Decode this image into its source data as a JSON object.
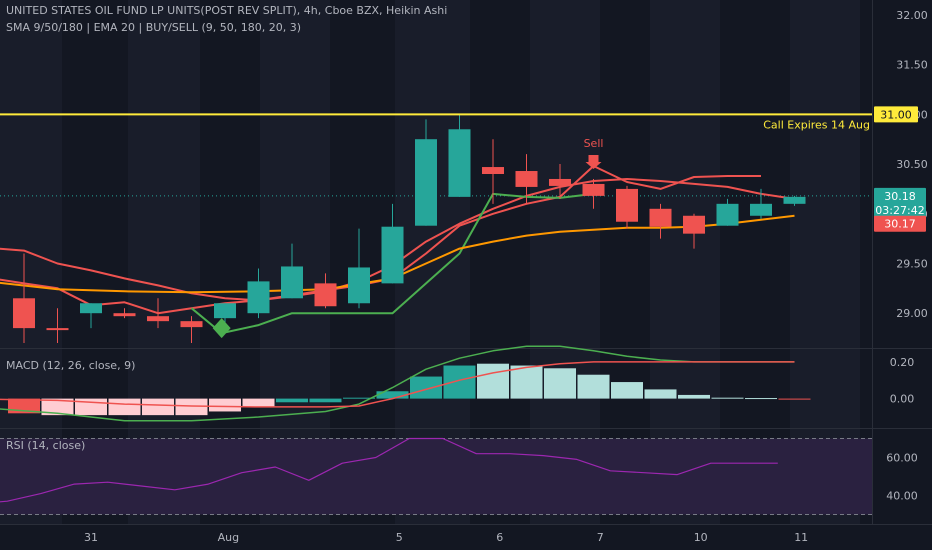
{
  "header": {
    "title": "UNITED STATES OIL FUND LP UNITS(POST REV SPLIT), 4h, Cboe BZX, Heikin Ashi",
    "indicators": "SMA 9/50/180 | EMA 20 | BUY/SELL (9, 50, 180, 20, 3)"
  },
  "colors": {
    "background": "#131722",
    "band": "#191d2a",
    "bull": "#26a69a",
    "bear": "#ef5350",
    "bull_light": "#b2dfdb",
    "bear_light": "#ffcdd2",
    "level_line": "#ffeb3b",
    "sma_red": "#ef5350",
    "sma_green": "#4caf50",
    "ema_orange": "#ff9800",
    "rsi_line": "#9c27b0"
  },
  "chart_data": [
    {
      "type": "candlestick",
      "title": "UNITED STATES OIL FUND LP UNITS(POST REV SPLIT), 4h, Cboe BZX, Heikin Ashi",
      "x_ticks": [
        {
          "i": 2,
          "label": "31"
        },
        {
          "i": 6.1,
          "label": "Aug"
        },
        {
          "i": 11.2,
          "label": "5"
        },
        {
          "i": 14.2,
          "label": "6"
        },
        {
          "i": 17.2,
          "label": "7"
        },
        {
          "i": 20.2,
          "label": "10"
        },
        {
          "i": 23.2,
          "label": "11"
        }
      ],
      "y_ticks": [
        29.0,
        29.5,
        30.0,
        30.5,
        31.0,
        31.5,
        32.0
      ],
      "y_range": [
        28.65,
        32.15
      ],
      "candles": [
        {
          "o": 29.15,
          "h": 29.6,
          "l": 28.7,
          "c": 28.85,
          "bull": false
        },
        {
          "o": 28.85,
          "h": 29.05,
          "l": 28.7,
          "c": 28.85,
          "bull": false
        },
        {
          "o": 29.0,
          "h": 29.1,
          "l": 28.85,
          "c": 29.1,
          "bull": true
        },
        {
          "o": 29.0,
          "h": 29.05,
          "l": 28.95,
          "c": 28.97,
          "bull": false
        },
        {
          "o": 28.97,
          "h": 29.15,
          "l": 28.85,
          "c": 28.92,
          "bull": false
        },
        {
          "o": 28.92,
          "h": 28.97,
          "l": 28.7,
          "c": 28.86,
          "bull": false
        },
        {
          "o": 28.95,
          "h": 29.1,
          "l": 28.9,
          "c": 29.1,
          "bull": true
        },
        {
          "o": 29.0,
          "h": 29.45,
          "l": 28.95,
          "c": 29.32,
          "bull": true
        },
        {
          "o": 29.15,
          "h": 29.7,
          "l": 29.15,
          "c": 29.47,
          "bull": true
        },
        {
          "o": 29.3,
          "h": 29.4,
          "l": 29.05,
          "c": 29.07,
          "bull": false
        },
        {
          "o": 29.1,
          "h": 29.85,
          "l": 29.05,
          "c": 29.46,
          "bull": true
        },
        {
          "o": 29.3,
          "h": 30.1,
          "l": 29.3,
          "c": 29.87,
          "bull": true
        },
        {
          "o": 29.88,
          "h": 30.95,
          "l": 29.88,
          "c": 30.75,
          "bull": true
        },
        {
          "o": 30.17,
          "h": 31.0,
          "l": 30.17,
          "c": 30.85,
          "bull": true
        },
        {
          "o": 30.47,
          "h": 30.75,
          "l": 30.1,
          "c": 30.4,
          "bull": false
        },
        {
          "o": 30.43,
          "h": 30.6,
          "l": 30.1,
          "c": 30.27,
          "bull": false
        },
        {
          "o": 30.35,
          "h": 30.5,
          "l": 30.15,
          "c": 30.28,
          "bull": false
        },
        {
          "o": 30.3,
          "h": 30.35,
          "l": 30.05,
          "c": 30.18,
          "bull": false
        },
        {
          "o": 30.25,
          "h": 30.28,
          "l": 29.85,
          "c": 29.92,
          "bull": false
        },
        {
          "o": 30.05,
          "h": 30.1,
          "l": 29.75,
          "c": 29.87,
          "bull": false
        },
        {
          "o": 29.98,
          "h": 30.0,
          "l": 29.65,
          "c": 29.8,
          "bull": false
        },
        {
          "o": 29.88,
          "h": 30.15,
          "l": 29.88,
          "c": 30.1,
          "bull": true
        },
        {
          "o": 29.98,
          "h": 30.25,
          "l": 29.95,
          "c": 30.1,
          "bull": true
        },
        {
          "o": 30.1,
          "h": 30.18,
          "l": 30.08,
          "c": 30.17,
          "bull": true
        }
      ],
      "series": [
        {
          "name": "SMA 9",
          "color": "#ef5350",
          "points": [
            [
              -1.9,
              29.68
            ],
            [
              0,
              29.63
            ],
            [
              1,
              29.5
            ],
            [
              2,
              29.43
            ],
            [
              3,
              29.35
            ],
            [
              4,
              29.28
            ],
            [
              5,
              29.2
            ],
            [
              6,
              29.15
            ],
            [
              7,
              29.13
            ],
            [
              8,
              29.17
            ],
            [
              9,
              29.22
            ],
            [
              10,
              29.32
            ],
            [
              11,
              29.48
            ],
            [
              12,
              29.72
            ],
            [
              13,
              29.9
            ],
            [
              14,
              30.05
            ],
            [
              15,
              30.18
            ],
            [
              16,
              30.27
            ],
            [
              17,
              30.33
            ],
            [
              18,
              30.35
            ],
            [
              19,
              30.33
            ],
            [
              20,
              30.3
            ],
            [
              21,
              30.27
            ],
            [
              22,
              30.2
            ],
            [
              23,
              30.15
            ]
          ]
        },
        {
          "name": "SMA 50",
          "color": "#ef5350",
          "points": [
            [
              -1.9,
              29.4
            ],
            [
              0,
              29.3
            ],
            [
              1,
              29.25
            ],
            [
              2,
              29.08
            ],
            [
              3,
              29.11
            ],
            [
              4,
              29.0
            ],
            [
              5,
              29.05
            ],
            [
              6,
              29.1
            ],
            [
              7,
              29.13
            ],
            [
              8,
              29.18
            ],
            [
              9,
              29.23
            ],
            [
              10,
              29.28
            ],
            [
              11,
              29.35
            ],
            [
              12,
              29.6
            ],
            [
              13,
              29.88
            ],
            [
              14,
              30.0
            ],
            [
              15,
              30.1
            ],
            [
              16,
              30.17
            ],
            [
              17,
              30.48
            ],
            [
              18,
              30.32
            ],
            [
              19,
              30.25
            ],
            [
              20,
              30.37
            ],
            [
              21,
              30.38
            ],
            [
              22,
              30.38
            ]
          ]
        },
        {
          "name": "SMA 180",
          "color": "#4caf50",
          "points": [
            [
              5,
              29.05
            ],
            [
              5.9,
              28.8
            ],
            [
              7,
              28.88
            ],
            [
              8,
              29.0
            ],
            [
              9,
              29.0
            ],
            [
              10,
              29.0
            ],
            [
              11,
              29.0
            ],
            [
              12,
              29.3
            ],
            [
              13,
              29.6
            ],
            [
              14,
              30.2
            ],
            [
              15,
              30.17
            ],
            [
              16,
              30.16
            ],
            [
              17,
              30.2
            ]
          ]
        },
        {
          "name": "EMA 20",
          "color": "#ff9800",
          "points": [
            [
              -1.9,
              29.35
            ],
            [
              1,
              29.24
            ],
            [
              3,
              29.22
            ],
            [
              5,
              29.21
            ],
            [
              7,
              29.22
            ],
            [
              9,
              29.24
            ],
            [
              11,
              29.35
            ],
            [
              12,
              29.5
            ],
            [
              13,
              29.65
            ],
            [
              14,
              29.72
            ],
            [
              15,
              29.78
            ],
            [
              16,
              29.82
            ],
            [
              17,
              29.84
            ],
            [
              18,
              29.86
            ],
            [
              19,
              29.86
            ],
            [
              20,
              29.87
            ],
            [
              21,
              29.9
            ],
            [
              22,
              29.94
            ],
            [
              23,
              29.98
            ]
          ]
        }
      ],
      "level": {
        "value": 31.0,
        "label": "31.00",
        "note": "Call Expires 14 Aug"
      },
      "signals": [
        {
          "kind": "sell",
          "i": 17,
          "price": 30.45,
          "label": "Sell"
        },
        {
          "kind": "buy",
          "i": 5.9,
          "price": 28.85
        }
      ],
      "price_tags": [
        {
          "label": "30.18",
          "price": 30.18,
          "color": "#26a69a"
        },
        {
          "label": "03:27:42",
          "price": 30.04,
          "color": "#26a69a"
        },
        {
          "label": "30.17",
          "price": 29.9,
          "color": "#ef5350"
        }
      ],
      "last_price": 30.18
    },
    {
      "type": "bar",
      "title": "MACD (12, 26, close, 9)",
      "y_ticks": [
        0.0,
        0.2
      ],
      "y_range": [
        -0.16,
        0.27
      ],
      "histogram": [
        -0.08,
        -0.09,
        -0.09,
        -0.09,
        -0.09,
        -0.09,
        -0.07,
        -0.045,
        -0.02,
        -0.02,
        0.005,
        0.04,
        0.12,
        0.18,
        0.19,
        0.18,
        0.165,
        0.13,
        0.09,
        0.05,
        0.02,
        0.005,
        0.003,
        0.0
      ],
      "hist_colors": [
        "#ef5350",
        "#ffcdd2",
        "#ffcdd2",
        "#ffcdd2",
        "#ffcdd2",
        "#ffcdd2",
        "#ffcdd2",
        "#ffcdd2",
        "#26a69a",
        "#26a69a",
        "#26a69a",
        "#26a69a",
        "#26a69a",
        "#26a69a",
        "#b2dfdb",
        "#b2dfdb",
        "#b2dfdb",
        "#b2dfdb",
        "#b2dfdb",
        "#b2dfdb",
        "#b2dfdb",
        "#b2dfdb",
        "#b2dfdb",
        "#ef5350"
      ],
      "series": [
        {
          "name": "MACD",
          "color": "#4caf50",
          "points": [
            [
              -1.9,
              -0.04
            ],
            [
              1,
              -0.08
            ],
            [
              3,
              -0.12
            ],
            [
              5,
              -0.12
            ],
            [
              7,
              -0.1
            ],
            [
              9,
              -0.07
            ],
            [
              10,
              -0.03
            ],
            [
              11,
              0.06
            ],
            [
              12,
              0.16
            ],
            [
              13,
              0.22
            ],
            [
              14,
              0.26
            ],
            [
              15,
              0.285
            ],
            [
              16,
              0.285
            ],
            [
              17,
              0.26
            ],
            [
              18,
              0.23
            ],
            [
              19,
              0.21
            ],
            [
              20,
              0.2
            ],
            [
              21,
              0.2
            ],
            [
              22,
              0.2
            ],
            [
              23,
              0.2
            ]
          ]
        },
        {
          "name": "Signal",
          "color": "#ef5350",
          "points": [
            [
              -1.9,
              0.0
            ],
            [
              1,
              -0.01
            ],
            [
              3,
              -0.03
            ],
            [
              5,
              -0.04
            ],
            [
              7,
              -0.045
            ],
            [
              9,
              -0.045
            ],
            [
              10,
              -0.04
            ],
            [
              11,
              0.0
            ],
            [
              12,
              0.05
            ],
            [
              13,
              0.1
            ],
            [
              14,
              0.14
            ],
            [
              15,
              0.17
            ],
            [
              16,
              0.19
            ],
            [
              17,
              0.2
            ],
            [
              18,
              0.2
            ],
            [
              19,
              0.2
            ],
            [
              20,
              0.2
            ],
            [
              21,
              0.2
            ],
            [
              22,
              0.2
            ],
            [
              23,
              0.2
            ]
          ]
        }
      ]
    },
    {
      "type": "line",
      "title": "RSI (14, close)",
      "y_ticks": [
        40.0,
        60.0
      ],
      "y_range": [
        25.0,
        75.0
      ],
      "band": [
        30.0,
        70.0
      ],
      "series": [
        {
          "name": "RSI",
          "color": "#9c27b0",
          "points": [
            [
              -1.9,
              35
            ],
            [
              -0.5,
              37
            ],
            [
              0.5,
              41
            ],
            [
              1.5,
              46
            ],
            [
              2.5,
              47
            ],
            [
              3.5,
              45
            ],
            [
              4.5,
              43
            ],
            [
              5.5,
              46
            ],
            [
              6.5,
              52
            ],
            [
              7.5,
              55
            ],
            [
              8.5,
              48
            ],
            [
              9.5,
              57
            ],
            [
              10.5,
              60
            ],
            [
              11.5,
              70
            ],
            [
              12.5,
              70
            ],
            [
              13.5,
              62
            ],
            [
              14.5,
              62
            ],
            [
              15.5,
              61
            ],
            [
              16.5,
              59
            ],
            [
              17.5,
              53
            ],
            [
              18.5,
              52
            ],
            [
              19.5,
              51
            ],
            [
              20.5,
              57
            ],
            [
              21.5,
              57
            ],
            [
              22.5,
              57
            ]
          ]
        }
      ]
    }
  ]
}
